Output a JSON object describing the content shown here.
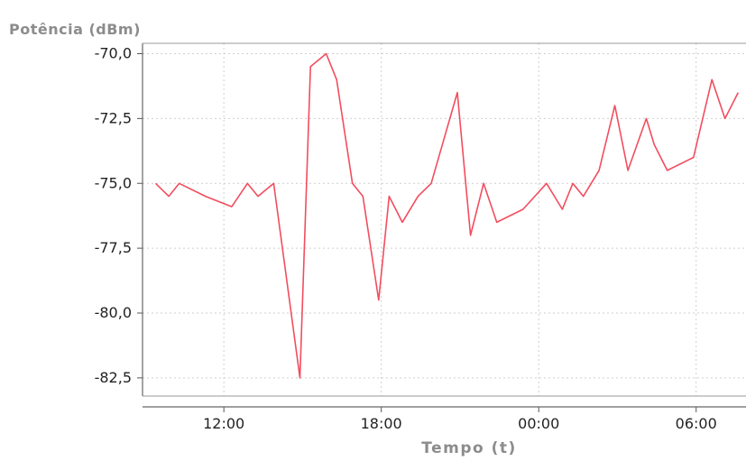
{
  "chart_data": {
    "type": "line",
    "xlabel": "Tempo (t)",
    "ylabel": "Potência (dBm)",
    "grid": true,
    "x_tick_labels": [
      "12:00",
      "18:00",
      "00:00",
      "06:00"
    ],
    "x_tick_hours": [
      12,
      18,
      24,
      30
    ],
    "xlim_hours": [
      8.9,
      31.9
    ],
    "y_tick_labels": [
      "-70,0",
      "-72,5",
      "-75,0",
      "-77,5",
      "-80,0",
      "-82,5"
    ],
    "y_tick_values": [
      -70,
      -72.5,
      -75,
      -77.5,
      -80,
      -82.5
    ],
    "ylim": [
      -83.2,
      -69.6
    ],
    "series": [
      {
        "color": "#f24d5e",
        "x_hours": [
          9.4,
          9.9,
          10.3,
          11.3,
          12.3,
          12.9,
          13.3,
          13.9,
          14.9,
          15.3,
          15.9,
          16.3,
          16.9,
          17.3,
          17.9,
          18.3,
          18.8,
          19.4,
          19.9,
          20.9,
          21.4,
          21.9,
          22.4,
          23.4,
          24.3,
          24.9,
          25.3,
          25.7,
          26.3,
          26.9,
          27.4,
          28.1,
          28.4,
          28.9,
          29.9,
          30.6,
          31.1,
          31.6
        ],
        "values": [
          -75.0,
          -75.5,
          -75.0,
          -75.5,
          -75.9,
          -75.0,
          -75.5,
          -75.0,
          -82.5,
          -70.5,
          -70.0,
          -71.0,
          -75.0,
          -75.5,
          -79.5,
          -75.5,
          -76.5,
          -75.5,
          -75.0,
          -71.5,
          -77.0,
          -75.0,
          -76.5,
          -76.0,
          -75.0,
          -76.0,
          -75.0,
          -75.5,
          -74.5,
          -72.0,
          -74.5,
          -72.5,
          -73.5,
          -74.5,
          -74.0,
          -71.0,
          -72.5,
          -71.5
        ]
      }
    ]
  }
}
